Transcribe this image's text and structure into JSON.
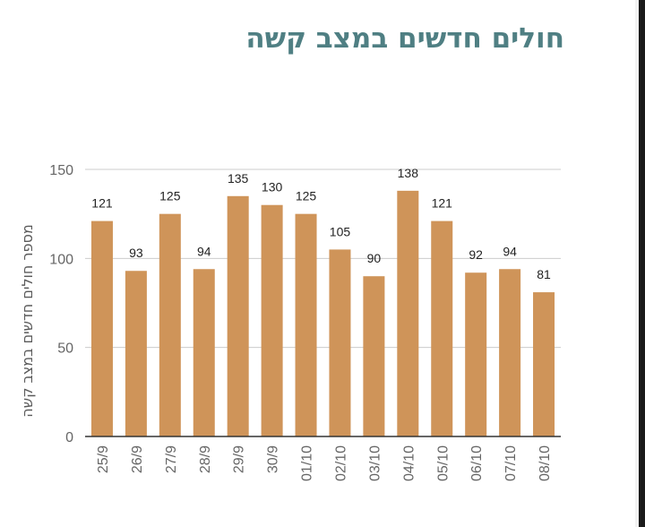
{
  "chart_data": {
    "type": "bar",
    "title": "חולים חדשים במצב קשה",
    "xlabel": "",
    "ylabel": "מספר חולים חדשים במצב קשה",
    "categories": [
      "25/9",
      "26/9",
      "27/9",
      "28/9",
      "29/9",
      "30/9",
      "01/10",
      "02/10",
      "03/10",
      "04/10",
      "05/10",
      "06/10",
      "07/10",
      "08/10"
    ],
    "series": [
      {
        "values": [
          121,
          93,
          125,
          94,
          135,
          130,
          125,
          105,
          90,
          138,
          121,
          92,
          94,
          81
        ]
      }
    ],
    "ylim": [
      0,
      150
    ],
    "yticks": [
      "0",
      "50",
      "100",
      "150"
    ],
    "grid": true,
    "legend": "none",
    "data_labels": true,
    "colors": {
      "bar": "#cf9459",
      "grid": "#cccccc",
      "axis": "#333333",
      "title": "#4f7f83"
    }
  }
}
